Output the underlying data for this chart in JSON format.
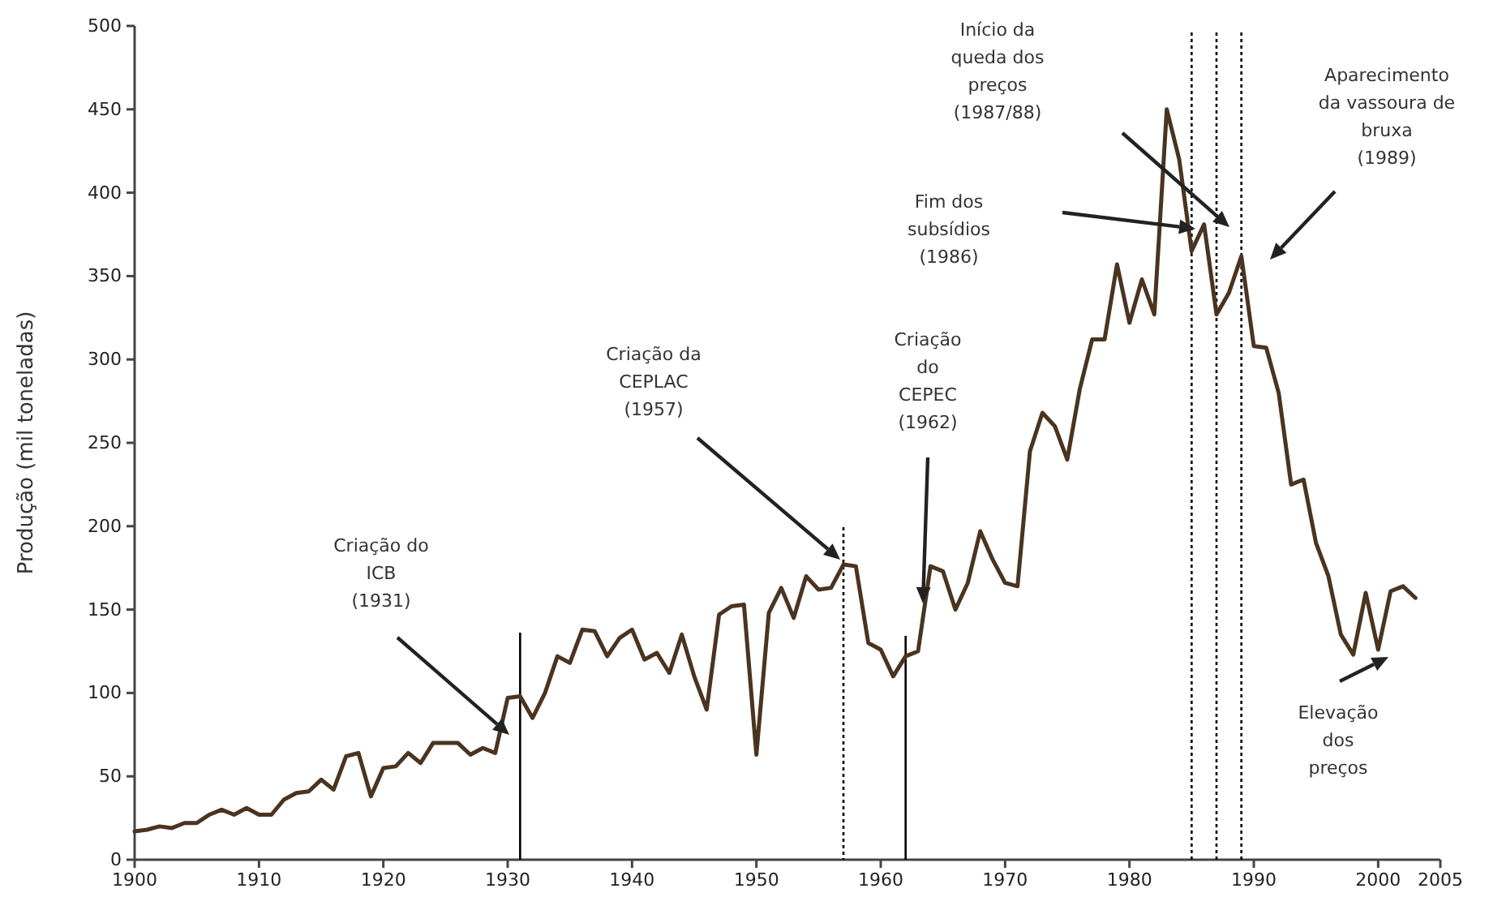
{
  "chart_data": {
    "type": "line",
    "ylabel": "Produção (mil toneladas)",
    "xlim": [
      1900,
      2005
    ],
    "ylim": [
      0,
      500
    ],
    "xticks": [
      1900,
      1910,
      1920,
      1930,
      1940,
      1950,
      1960,
      1970,
      1980,
      1990,
      2000,
      2005
    ],
    "yticks": [
      0,
      50,
      100,
      150,
      200,
      250,
      300,
      350,
      400,
      450,
      500
    ],
    "grid": false,
    "marker": "none",
    "line_style": "solid",
    "series": [
      {
        "color": "#4a3420",
        "x": [
          1900,
          1901,
          1902,
          1903,
          1904,
          1905,
          1906,
          1907,
          1908,
          1909,
          1910,
          1911,
          1912,
          1913,
          1914,
          1915,
          1916,
          1917,
          1918,
          1919,
          1920,
          1921,
          1922,
          1923,
          1924,
          1925,
          1926,
          1927,
          1928,
          1929,
          1930,
          1931,
          1932,
          1933,
          1934,
          1935,
          1936,
          1937,
          1938,
          1939,
          1940,
          1941,
          1942,
          1943,
          1944,
          1945,
          1946,
          1947,
          1948,
          1949,
          1950,
          1951,
          1952,
          1953,
          1954,
          1955,
          1956,
          1957,
          1958,
          1959,
          1960,
          1961,
          1962,
          1963,
          1964,
          1965,
          1966,
          1967,
          1968,
          1969,
          1970,
          1971,
          1972,
          1973,
          1974,
          1975,
          1976,
          1977,
          1978,
          1979,
          1980,
          1981,
          1982,
          1983,
          1984,
          1985,
          1986,
          1987,
          1988,
          1989,
          1990,
          1991,
          1992,
          1993,
          1994,
          1995,
          1996,
          1997,
          1998,
          1999,
          2000,
          2001,
          2002,
          2003
        ],
        "values": [
          17,
          18,
          20,
          19,
          22,
          22,
          27,
          30,
          27,
          31,
          27,
          27,
          36,
          40,
          41,
          48,
          42,
          62,
          64,
          38,
          55,
          56,
          64,
          58,
          70,
          70,
          70,
          63,
          67,
          64,
          97,
          98,
          85,
          100,
          122,
          118,
          138,
          137,
          122,
          133,
          138,
          120,
          124,
          112,
          135,
          110,
          90,
          147,
          152,
          153,
          63,
          148,
          163,
          145,
          170,
          162,
          163,
          177,
          176,
          130,
          126,
          110,
          122,
          125,
          176,
          173,
          150,
          166,
          197,
          180,
          166,
          164,
          245,
          268,
          260,
          240,
          282,
          312,
          312,
          357,
          322,
          348,
          327,
          450,
          420,
          365,
          381,
          327,
          340,
          362,
          308,
          307,
          280,
          225,
          228,
          190,
          170,
          135,
          123,
          160,
          126,
          161,
          164,
          157
        ]
      }
    ],
    "ref_lines": [
      {
        "axis": "x",
        "value": 1931,
        "line_style": "solid",
        "color": "#000000"
      },
      {
        "axis": "x",
        "value": 1957,
        "line_style": "dotted",
        "color": "#000000"
      },
      {
        "axis": "x",
        "value": 1962,
        "line_style": "solid",
        "color": "#000000"
      },
      {
        "axis": "x",
        "value": 1985,
        "line_style": "dotted",
        "color": "#000000"
      },
      {
        "axis": "x",
        "value": 1987,
        "line_style": "dotted",
        "color": "#000000"
      },
      {
        "axis": "x",
        "value": 1989,
        "line_style": "dotted",
        "color": "#000000"
      }
    ],
    "annotations": [
      "Criação do\nICB\n(1931)",
      "Criação da\nCEPLAC\n(1957)",
      "Criação\ndo\nCEPEC\n(1962)",
      "Fim dos\nsubsídios\n(1986)",
      "Início da\nqueda dos\npreços\n(1987/88)",
      "Aparecimento\nda vassoura de\nbruxa\n(1989)",
      "Elevação\ndos\npreços"
    ]
  }
}
